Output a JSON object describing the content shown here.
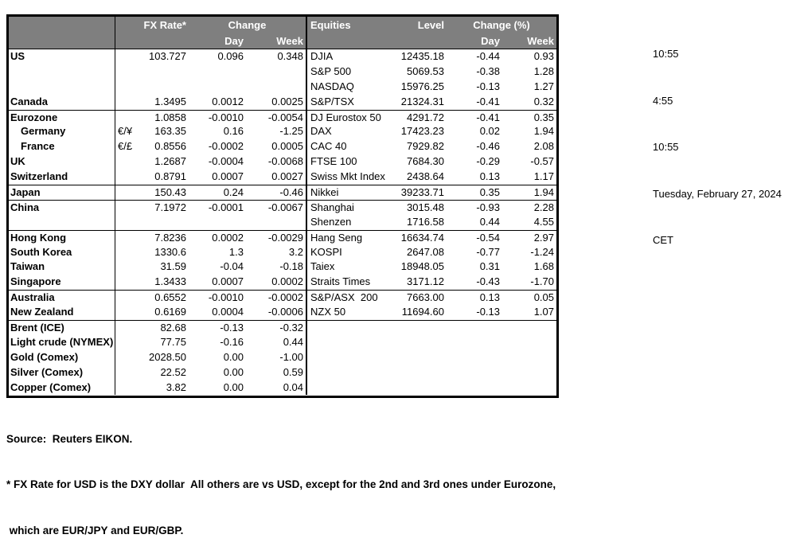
{
  "header": {
    "fx_rate": "FX Rate*",
    "change": "Change",
    "day": "Day",
    "week": "Week",
    "equities": "Equities",
    "level": "Level",
    "change_pct": "Change (%)"
  },
  "rule_above": [
    4,
    9,
    10,
    12,
    16,
    18
  ],
  "fx_rows": [
    {
      "label": "US",
      "pair": "",
      "rate": "103.727",
      "day": "0.096",
      "week": "0.348"
    },
    {
      "label": "",
      "pair": "",
      "rate": "",
      "day": "",
      "week": ""
    },
    {
      "label": "",
      "pair": "",
      "rate": "",
      "day": "",
      "week": ""
    },
    {
      "label": "Canada",
      "pair": "",
      "rate": "1.3495",
      "day": "0.0012",
      "week": "0.0025"
    },
    {
      "label": "Eurozone",
      "pair": "",
      "rate": "1.0858",
      "day": "-0.0010",
      "week": "-0.0054"
    },
    {
      "label": "Germany",
      "indent": true,
      "pair": "€/¥",
      "rate": "163.35",
      "day": "0.16",
      "week": "-1.25"
    },
    {
      "label": "France",
      "indent": true,
      "pair": "€/£",
      "rate": "0.8556",
      "day": "-0.0002",
      "week": "0.0005"
    },
    {
      "label": "UK",
      "pair": "",
      "rate": "1.2687",
      "day": "-0.0004",
      "week": "-0.0068"
    },
    {
      "label": "Switzerland",
      "pair": "",
      "rate": "0.8791",
      "day": "0.0007",
      "week": "0.0027"
    },
    {
      "label": "Japan",
      "pair": "",
      "rate": "150.43",
      "day": "0.24",
      "week": "-0.46"
    },
    {
      "label": "China",
      "pair": "",
      "rate": "7.1972",
      "day": "-0.0001",
      "week": "-0.0067"
    },
    {
      "label": "",
      "pair": "",
      "rate": "",
      "day": "",
      "week": ""
    },
    {
      "label": "Hong Kong",
      "pair": "",
      "rate": "7.8236",
      "day": "0.0002",
      "week": "-0.0029"
    },
    {
      "label": "South Korea",
      "pair": "",
      "rate": "1330.6",
      "day": "1.3",
      "week": "3.2"
    },
    {
      "label": "Taiwan",
      "pair": "",
      "rate": "31.59",
      "day": "-0.04",
      "week": "-0.18"
    },
    {
      "label": "Singapore",
      "pair": "",
      "rate": "1.3433",
      "day": "0.0007",
      "week": "0.0002"
    },
    {
      "label": "Australia",
      "pair": "",
      "rate": "0.6552",
      "day": "-0.0010",
      "week": "-0.0002"
    },
    {
      "label": "New Zealand",
      "pair": "",
      "rate": "0.6169",
      "day": "0.0004",
      "week": "-0.0006"
    },
    {
      "label": "Brent (ICE)",
      "pair": "",
      "rate": "82.68",
      "day": "-0.13",
      "week": "-0.32"
    },
    {
      "label": "Light crude (NYMEX)",
      "pair": "",
      "rate": "77.75",
      "day": "-0.16",
      "week": "0.44"
    },
    {
      "label": "Gold (Comex)",
      "pair": "",
      "rate": "2028.50",
      "day": "0.00",
      "week": "-1.00"
    },
    {
      "label": "Silver (Comex)",
      "pair": "",
      "rate": "22.52",
      "day": "0.00",
      "week": "0.59"
    },
    {
      "label": "Copper (Comex)",
      "pair": "",
      "rate": "3.82",
      "day": "0.00",
      "week": "0.04"
    }
  ],
  "eq_rows": [
    {
      "name": "DJIA",
      "level": "12435.18",
      "day": "-0.44",
      "week": "0.93"
    },
    {
      "name": "S&P 500",
      "level": "5069.53",
      "day": "-0.38",
      "week": "1.28"
    },
    {
      "name": "NASDAQ",
      "level": "15976.25",
      "day": "-0.13",
      "week": "1.27"
    },
    {
      "name": "S&P/TSX",
      "level": "21324.31",
      "day": "-0.41",
      "week": "0.32"
    },
    {
      "name": "DJ Eurostox 50",
      "level": "4291.72",
      "day": "-0.41",
      "week": "0.35"
    },
    {
      "name": "DAX",
      "level": "17423.23",
      "day": "0.02",
      "week": "1.94"
    },
    {
      "name": "CAC 40",
      "level": "7929.82",
      "day": "-0.46",
      "week": "2.08"
    },
    {
      "name": "FTSE 100",
      "level": "7684.30",
      "day": "-0.29",
      "week": "-0.57"
    },
    {
      "name": "Swiss Mkt Index",
      "level": "2438.64",
      "day": "0.13",
      "week": "1.17"
    },
    {
      "name": "Nikkei",
      "level": "39233.71",
      "day": "0.35",
      "week": "1.94"
    },
    {
      "name": "Shanghai",
      "level": "3015.48",
      "day": "-0.93",
      "week": "2.28"
    },
    {
      "name": "Shenzen",
      "level": "1716.58",
      "day": "0.44",
      "week": "4.55"
    },
    {
      "name": "Hang Seng",
      "level": "16634.74",
      "day": "-0.54",
      "week": "2.97"
    },
    {
      "name": "KOSPI",
      "level": "2647.08",
      "day": "-0.77",
      "week": "-1.24"
    },
    {
      "name": "Taiex",
      "level": "18948.05",
      "day": "0.31",
      "week": "1.68"
    },
    {
      "name": "Straits Times",
      "level": "3171.12",
      "day": "-0.43",
      "week": "-1.70"
    },
    {
      "name": "S&P/ASX  200",
      "level": "7663.00",
      "day": "0.13",
      "week": "0.05"
    },
    {
      "name": "NZX 50",
      "level": "11694.60",
      "day": "-0.13",
      "week": "1.07"
    },
    {
      "name": "",
      "level": "",
      "day": "",
      "week": ""
    },
    {
      "name": "",
      "level": "",
      "day": "",
      "week": ""
    },
    {
      "name": "",
      "level": "",
      "day": "",
      "week": ""
    },
    {
      "name": "",
      "level": "",
      "day": "",
      "week": ""
    },
    {
      "name": "",
      "level": "",
      "day": "",
      "week": ""
    }
  ],
  "times": [
    "10:55",
    "4:55",
    "10:55",
    "Tuesday, February 27, 2024",
    "CET"
  ],
  "footer": {
    "source": "Source:  Reuters EIKON.",
    "note1": "* FX Rate for USD is the DXY dollar  All others are vs USD, except for the 2nd and 3rd ones under Eurozone,",
    "note2": " which are EUR/JPY and EUR/GBP."
  },
  "colors": {
    "header_bg": "#7f7f7f",
    "header_text": "#ffffff",
    "border": "#000000"
  }
}
